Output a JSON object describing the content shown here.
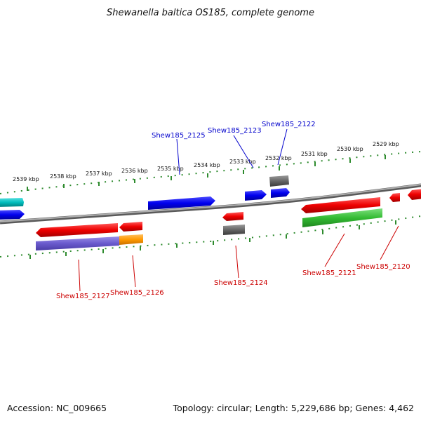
{
  "title": "Shewanella baltica OS185, complete genome",
  "footer": {
    "accession": "Accession: NC_009665",
    "topology": "Topology: circular; Length: 5,229,686 bp; Genes: 4,462"
  },
  "colors": {
    "backbone": "#8a8a8a",
    "tick": "#2e8b2e",
    "forward_label": "#0000cc",
    "reverse_label": "#cc0000",
    "blue": "#0000ee",
    "red": "#ee0000",
    "cyan": "#00bcbc",
    "gray": "#666666",
    "green": "#33bb33",
    "purple": "#6a5acd",
    "orange": "#ff9900"
  },
  "scale_labels": [
    "2539 kbp",
    "2538 kbp",
    "2537 kbp",
    "2536 kbp",
    "2535 kbp",
    "2534 kbp",
    "2533 kbp",
    "2532 kbp",
    "2531 kbp",
    "2530 kbp",
    "2529 kbp"
  ],
  "forward_gene_labels": [
    "Shew185_2125",
    "Shew185_2123",
    "Shew185_2122"
  ],
  "reverse_gene_labels": [
    "Shew185_2127",
    "Shew185_2126",
    "Shew185_2124",
    "Shew185_2121",
    "Shew185_2120"
  ]
}
